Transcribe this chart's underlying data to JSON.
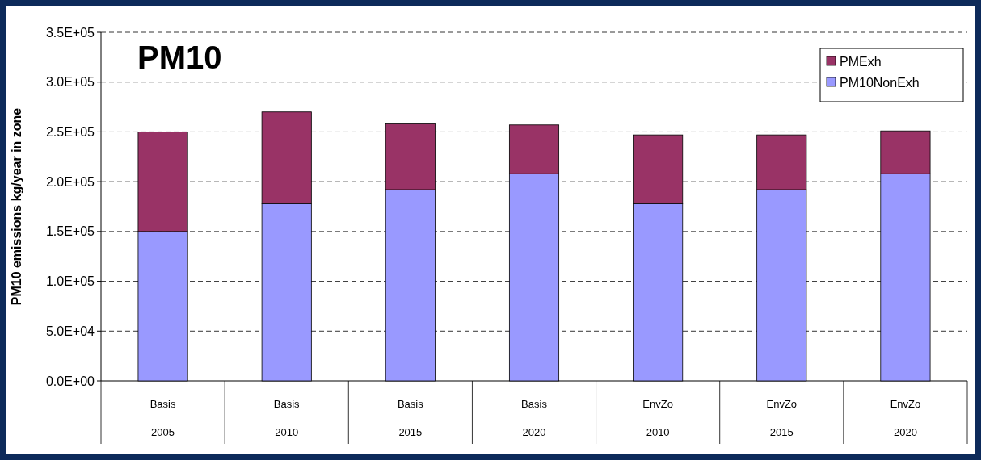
{
  "chart_data": {
    "type": "bar",
    "title": "PM10",
    "ylabel": "PM10 emissions kg/year in zone",
    "stacked": true,
    "categories": [
      "Basis\n2005",
      "Basis\n2010",
      "Basis\n2015",
      "Basis\n2020",
      "EnvZo\n2010",
      "EnvZo\n2015",
      "EnvZo\n2020"
    ],
    "series": [
      {
        "name": "PM10NonExh",
        "color": "#9999ff",
        "values": [
          150000,
          178000,
          192000,
          208000,
          178000,
          192000,
          208000
        ]
      },
      {
        "name": "PMExh",
        "color": "#993366",
        "values": [
          100000,
          92000,
          66000,
          49000,
          69000,
          55000,
          43000
        ]
      }
    ],
    "ylim": [
      0,
      350000
    ],
    "yticks": [
      {
        "value": 0,
        "label": "0.0E+00"
      },
      {
        "value": 50000,
        "label": "5.0E+04"
      },
      {
        "value": 100000,
        "label": "1.0E+05"
      },
      {
        "value": 150000,
        "label": "1.5E+05"
      },
      {
        "value": 200000,
        "label": "2.0E+05"
      },
      {
        "value": 250000,
        "label": "2.5E+05"
      },
      {
        "value": 300000,
        "label": "3.0E+05"
      },
      {
        "value": 350000,
        "label": "3.5E+05"
      }
    ],
    "grid": "y",
    "legend": "top right"
  }
}
